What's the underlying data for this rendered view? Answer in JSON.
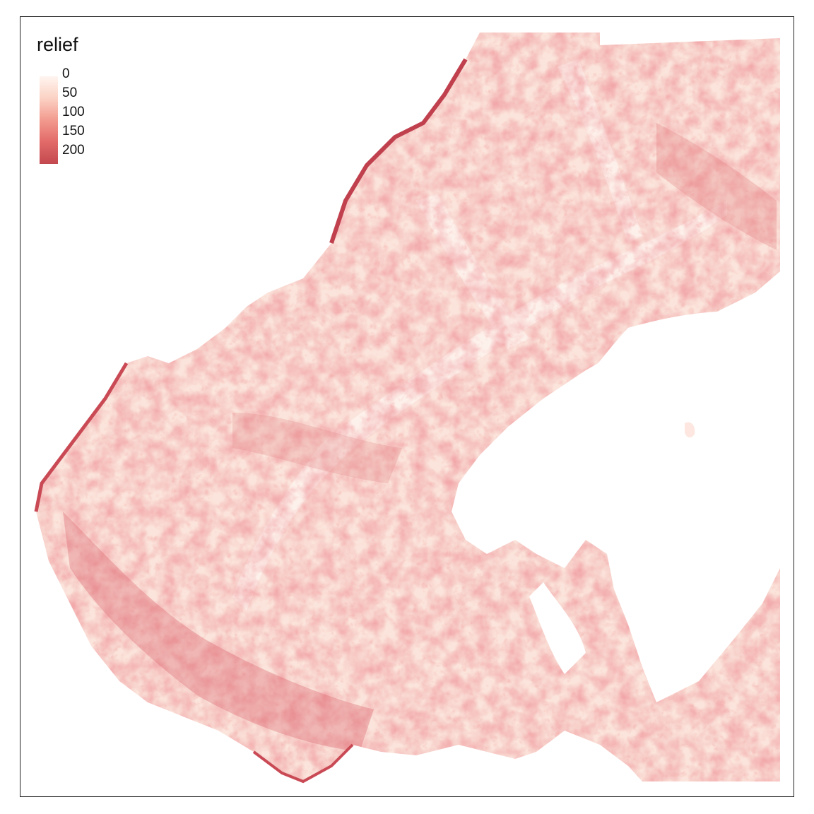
{
  "legend": {
    "title": "relief",
    "stops": [
      {
        "label": "0",
        "color": "#fff5f0"
      },
      {
        "label": "50",
        "color": "#fbd2c4"
      },
      {
        "label": "100",
        "color": "#f29a8e"
      },
      {
        "label": "150",
        "color": "#e26a68"
      },
      {
        "label": "200",
        "color": "#c2484f"
      }
    ]
  },
  "colors": {
    "background": "#ffffff",
    "frame": "#222222",
    "land_base": "#fbe4db",
    "valley_flat": "#fdf0ea",
    "ridge": "#f2a194",
    "steep": "#d9606a",
    "coast_edge": "#c0404e"
  }
}
